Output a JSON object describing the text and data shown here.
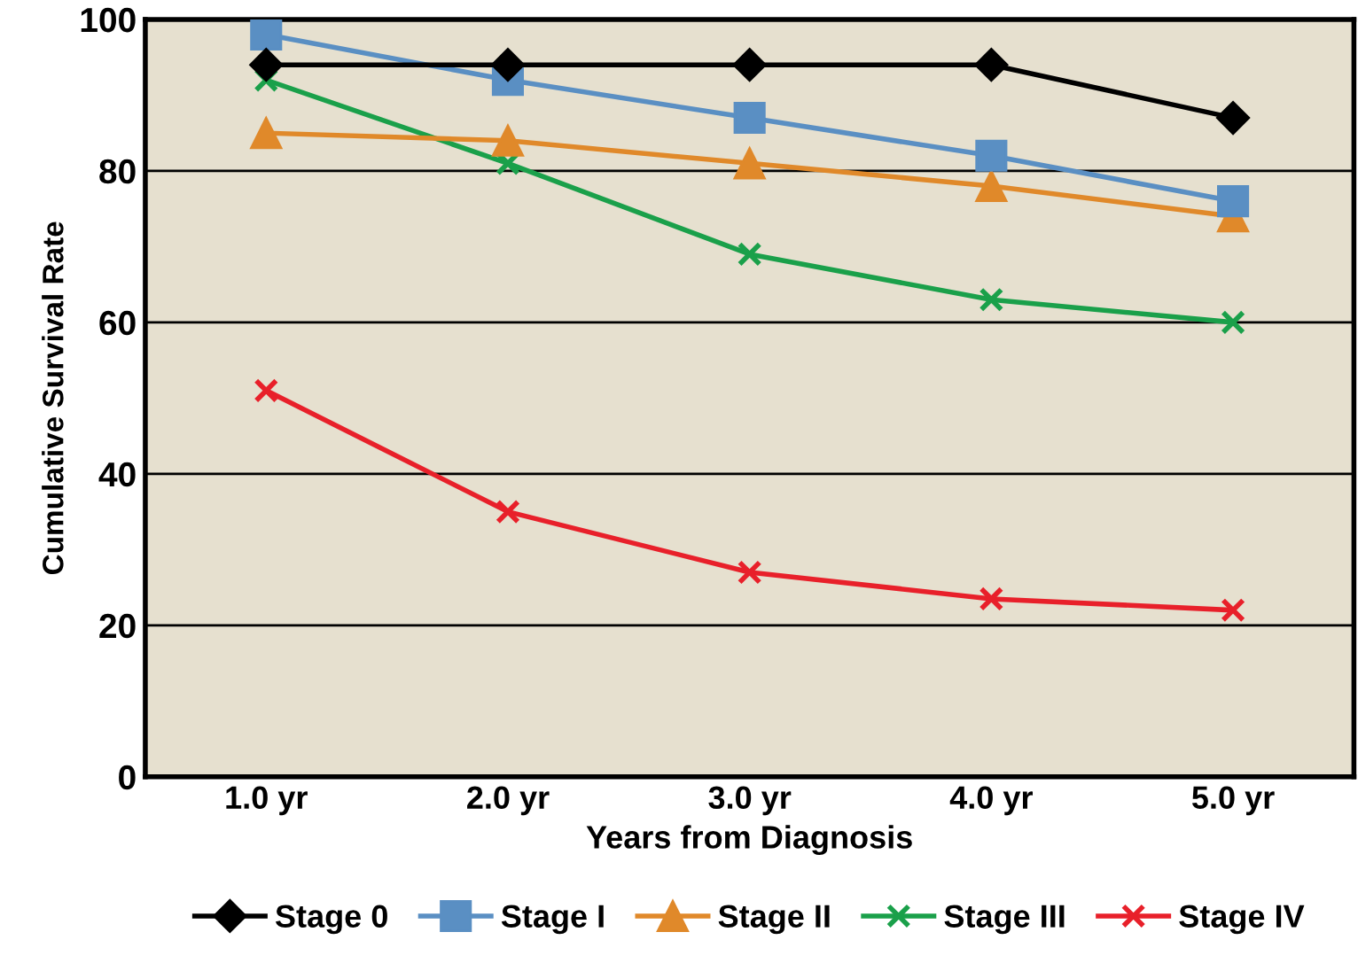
{
  "chart_data": {
    "type": "line",
    "xlabel": "Years from Diagnosis",
    "ylabel": "Cumulative Survival Rate",
    "categories": [
      "1.0 yr",
      "2.0 yr",
      "3.0 yr",
      "4.0 yr",
      "5.0 yr"
    ],
    "series": [
      {
        "name": "Stage 0",
        "color": "#000000",
        "marker": "diamond",
        "values": [
          94,
          94,
          94,
          94,
          87
        ]
      },
      {
        "name": "Stage I",
        "color": "#5a8fc3",
        "marker": "square",
        "values": [
          98,
          92,
          87,
          82,
          76
        ]
      },
      {
        "name": "Stage II",
        "color": "#e0892a",
        "marker": "triangle",
        "values": [
          85,
          84,
          81,
          78,
          74
        ]
      },
      {
        "name": "Stage III",
        "color": "#1aa04a",
        "marker": "cross",
        "values": [
          92,
          81,
          69,
          63,
          60
        ]
      },
      {
        "name": "Stage IV",
        "color": "#e8202a",
        "marker": "cross",
        "values": [
          51,
          35,
          27,
          23.5,
          22
        ]
      }
    ],
    "ylim": [
      0,
      100
    ],
    "yticks": [
      0,
      20,
      40,
      60,
      80,
      100
    ],
    "grid": "y",
    "legend": "bottom",
    "line_style": "solid"
  }
}
